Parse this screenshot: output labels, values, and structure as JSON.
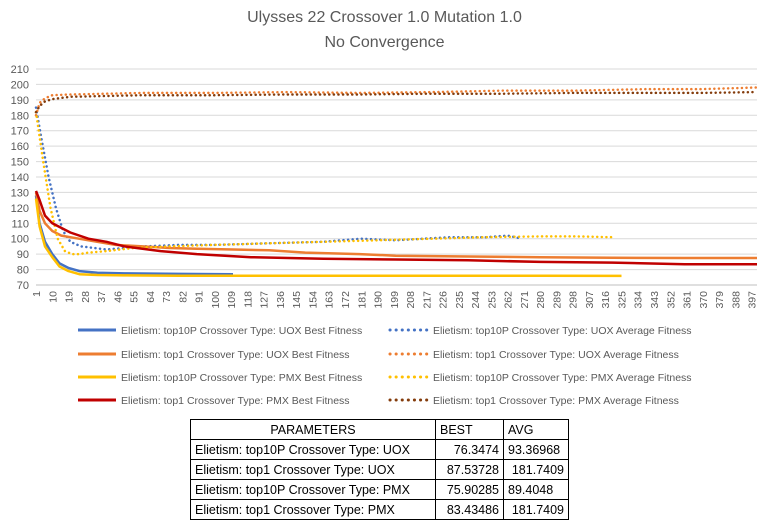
{
  "chart_data": {
    "type": "line",
    "title": "Ulysses 22 Crossover 1.0 Mutation 1.0",
    "subtitle": "No Convergence",
    "ylim": [
      70,
      210
    ],
    "yticks": [
      70,
      80,
      90,
      100,
      110,
      120,
      130,
      140,
      150,
      160,
      170,
      180,
      190,
      200,
      210
    ],
    "xlim": [
      1,
      400
    ],
    "xticks": [
      1,
      10,
      19,
      28,
      37,
      46,
      55,
      64,
      73,
      82,
      91,
      100,
      109,
      118,
      127,
      136,
      145,
      154,
      163,
      172,
      181,
      190,
      199,
      208,
      217,
      226,
      235,
      244,
      253,
      262,
      271,
      280,
      289,
      298,
      307,
      316,
      325,
      334,
      343,
      352,
      361,
      370,
      379,
      388,
      397
    ],
    "grid": true,
    "legend_position": "bottom",
    "series": [
      {
        "name": "Elietism: top10P Crossover Type: UOX  Best Fitness",
        "color": "#4472C4",
        "style": "solid",
        "x": [
          1,
          3,
          6,
          10,
          14,
          19,
          25,
          35,
          50,
          80,
          110
        ],
        "y": [
          128,
          110,
          98,
          90,
          84,
          81,
          79,
          78,
          77.5,
          77.2,
          77
        ]
      },
      {
        "name": "Elietism: top10P Crossover Type: UOX  Average Fitness",
        "color": "#4472C4",
        "style": "dotted",
        "x": [
          1,
          4,
          8,
          12,
          16,
          20,
          26,
          40,
          60,
          80,
          100,
          130,
          160,
          181,
          200,
          230,
          250,
          262,
          270
        ],
        "y": [
          185,
          165,
          140,
          120,
          105,
          98,
          95,
          93,
          95,
          96,
          96,
          97,
          98,
          100,
          99,
          101,
          101,
          102,
          100
        ]
      },
      {
        "name": "Elietism: top1 Crossover Type: UOX  Best Fitness",
        "color": "#ED7D31",
        "style": "solid",
        "x": [
          1,
          3,
          6,
          10,
          15,
          20,
          30,
          45,
          60,
          75,
          90,
          110,
          130,
          150,
          180,
          200,
          240,
          280,
          320,
          360,
          400
        ],
        "y": [
          130,
          118,
          110,
          105,
          102,
          101,
          99,
          96,
          95,
          94,
          93.5,
          93,
          92.5,
          91,
          90,
          89,
          88.5,
          88,
          87.6,
          87.5,
          87.5
        ]
      },
      {
        "name": "Elietism: top1 Crossover Type: UOX  Average Fitness",
        "color": "#ED7D31",
        "style": "dotted",
        "x": [
          1,
          3,
          6,
          10,
          20,
          40,
          60,
          100,
          140,
          180,
          220,
          260,
          300,
          340,
          370,
          400
        ],
        "y": [
          180,
          188,
          191,
          193,
          193.5,
          194,
          194.5,
          194.5,
          195,
          194.5,
          195,
          196,
          196,
          197,
          197,
          198
        ]
      },
      {
        "name": "Elietism: top10P Crossover Type: PMX  Best Fitness",
        "color": "#FFC000",
        "style": "solid",
        "x": [
          1,
          3,
          6,
          10,
          14,
          19,
          25,
          35,
          50,
          80,
          120,
          200,
          280,
          325
        ],
        "y": [
          126,
          108,
          95,
          88,
          82,
          79,
          77,
          76.5,
          76.2,
          76,
          76,
          76,
          76,
          75.9
        ]
      },
      {
        "name": "Elietism: top10P Crossover Type: PMX  Average Fitness",
        "color": "#FFC000",
        "style": "dotted",
        "x": [
          1,
          5,
          9,
          13,
          17,
          21,
          25,
          30,
          40,
          55,
          75,
          100,
          130,
          160,
          190,
          220,
          250,
          280,
          300,
          320
        ],
        "y": [
          182,
          150,
          120,
          100,
          92,
          90,
          90,
          91,
          92,
          94,
          95,
          96,
          97,
          98,
          99,
          100,
          101,
          101.5,
          101.5,
          101
        ]
      },
      {
        "name": "Elietism: top1 Crossover Type: PMX  Best Fitness",
        "color": "#C00000",
        "style": "solid",
        "x": [
          1,
          3,
          6,
          10,
          20,
          30,
          40,
          50,
          70,
          90,
          120,
          160,
          200,
          240,
          280,
          320,
          360,
          400
        ],
        "y": [
          131,
          125,
          115,
          110,
          104,
          100,
          98,
          95,
          92,
          90,
          88,
          87,
          86.5,
          86,
          85,
          84.5,
          83.5,
          83.4
        ]
      },
      {
        "name": "Elietism: top1 Crossover Type: PMX  Average Fitness",
        "color": "#843C0C",
        "style": "dotted",
        "x": [
          1,
          3,
          6,
          10,
          20,
          40,
          60,
          100,
          140,
          180,
          220,
          260,
          300,
          340,
          370,
          400
        ],
        "y": [
          182,
          186,
          189,
          190.5,
          192,
          192.5,
          193,
          193,
          193.5,
          193.5,
          194,
          194,
          194.5,
          194.5,
          194.5,
          195
        ]
      }
    ]
  },
  "legend_entries": [
    {
      "label": "Elietism: top10P Crossover Type: UOX  Best Fitness",
      "color": "#4472C4",
      "style": "solid"
    },
    {
      "label": "Elietism: top10P Crossover Type: UOX  Average Fitness",
      "color": "#4472C4",
      "style": "dotted"
    },
    {
      "label": "Elietism: top1 Crossover Type: UOX  Best Fitness",
      "color": "#ED7D31",
      "style": "solid"
    },
    {
      "label": "Elietism: top1 Crossover Type: UOX  Average Fitness",
      "color": "#ED7D31",
      "style": "dotted"
    },
    {
      "label": "Elietism: top10P Crossover Type: PMX  Best Fitness",
      "color": "#FFC000",
      "style": "solid"
    },
    {
      "label": "Elietism: top10P Crossover Type: PMX  Average Fitness",
      "color": "#FFC000",
      "style": "dotted"
    },
    {
      "label": "Elietism: top1 Crossover Type: PMX  Best Fitness",
      "color": "#C00000",
      "style": "solid"
    },
    {
      "label": "Elietism: top1 Crossover Type: PMX  Average Fitness",
      "color": "#843C0C",
      "style": "dotted"
    }
  ],
  "table": {
    "headers": [
      "PARAMETERS",
      "BEST",
      "AVG"
    ],
    "rows": [
      [
        "Elietism: top10P Crossover Type: UOX",
        "76.3474",
        "93.36968"
      ],
      [
        "Elietism: top1 Crossover Type: UOX",
        "87.53728",
        "181.7409"
      ],
      [
        "Elietism: top10P Crossover Type: PMX",
        "75.90285",
        "89.4048"
      ],
      [
        "Elietism: top1 Crossover Type: PMX",
        "83.43486",
        "181.7409"
      ]
    ]
  }
}
